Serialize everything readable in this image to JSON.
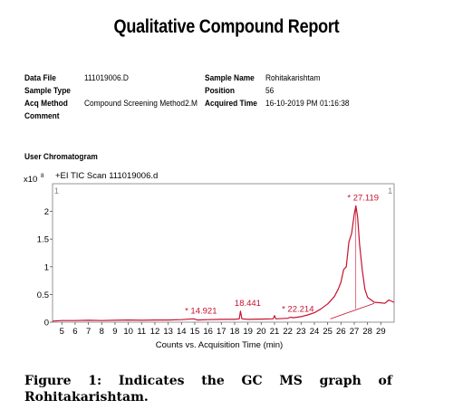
{
  "report": {
    "title": "Qualitative Compound Report",
    "data_file_label": "Data File",
    "data_file": "111019006.D",
    "sample_type_label": "Sample Type",
    "sample_type": "",
    "acq_method_label": "Acq Method",
    "acq_method": "Compound Screening Method2.M",
    "comment_label": "Comment",
    "comment": "",
    "sample_name_label": "Sample Name",
    "sample_name": "Rohitakarishtam",
    "position_label": "Position",
    "position": "56",
    "acquired_time_label": "Acquired Time",
    "acquired_time": "16-10-2019 PM 01:16:38",
    "section_label": "User Chromatogram"
  },
  "chart_data": {
    "type": "line",
    "title": "+EI TIC Scan 111019006.d",
    "xlabel": "Counts vs. Acquisition Time (min)",
    "ylabel": "",
    "y_multiplier": "x10",
    "y_exponent": "8",
    "xlim": [
      4.3,
      30.0
    ],
    "ylim": [
      0,
      2.5
    ],
    "x_ticks": [
      5,
      6,
      7,
      8,
      9,
      10,
      11,
      12,
      13,
      14,
      15,
      16,
      17,
      18,
      19,
      20,
      21,
      22,
      23,
      24,
      25,
      26,
      27,
      28,
      29
    ],
    "y_ticks": [
      0,
      0.5,
      1,
      1.5,
      2
    ],
    "y_tick_labels": [
      "0",
      "0.5",
      "1",
      "1.5",
      "2"
    ],
    "markers": [
      {
        "x": 4.6,
        "label": "1"
      },
      {
        "x": 29.7,
        "label": "1"
      }
    ],
    "series": [
      {
        "color": "#c8102e",
        "x": [
          4.3,
          5,
          6,
          7,
          8,
          9,
          10,
          11,
          12,
          13,
          14,
          14.9,
          15.2,
          16,
          17,
          18,
          18.35,
          18.44,
          18.55,
          19,
          20,
          20.9,
          21,
          21.1,
          22,
          22.2,
          22.4,
          23,
          23.5,
          24,
          24.5,
          25,
          25.5,
          25.8,
          26,
          26.2,
          26.4,
          26.6,
          26.8,
          27.0,
          27.12,
          27.25,
          27.4,
          27.6,
          27.8,
          28.0,
          28.5,
          29,
          29.3,
          29.6,
          30.0
        ],
        "y": [
          0.02,
          0.03,
          0.03,
          0.035,
          0.03,
          0.035,
          0.04,
          0.035,
          0.04,
          0.04,
          0.045,
          0.06,
          0.04,
          0.045,
          0.05,
          0.05,
          0.06,
          0.2,
          0.06,
          0.05,
          0.055,
          0.06,
          0.12,
          0.06,
          0.07,
          0.09,
          0.08,
          0.1,
          0.13,
          0.17,
          0.24,
          0.33,
          0.46,
          0.6,
          0.72,
          0.95,
          1.0,
          1.45,
          1.6,
          1.95,
          2.1,
          1.9,
          1.4,
          0.95,
          0.6,
          0.45,
          0.36,
          0.35,
          0.34,
          0.4,
          0.36
        ]
      }
    ],
    "baseline": {
      "x": [
        25.2,
        28.5
      ],
      "y": [
        0.06,
        0.34
      ]
    },
    "annotations": [
      {
        "x": 14.921,
        "y": 0.06,
        "text": "14.921",
        "star": true
      },
      {
        "x": 18.441,
        "y": 0.2,
        "text": "18.441",
        "star": false
      },
      {
        "x": 22.214,
        "y": 0.09,
        "text": "22.214",
        "star": true
      },
      {
        "x": 27.119,
        "y": 2.1,
        "text": "27.119",
        "star": true
      }
    ]
  },
  "caption": {
    "word1": "Figure",
    "word2": "1:",
    "word3": "Indicates",
    "word4": "the",
    "word5": "GC",
    "word6": "MS",
    "word7": "graph",
    "word8": "of",
    "line2": "Rohitakarishtam."
  }
}
